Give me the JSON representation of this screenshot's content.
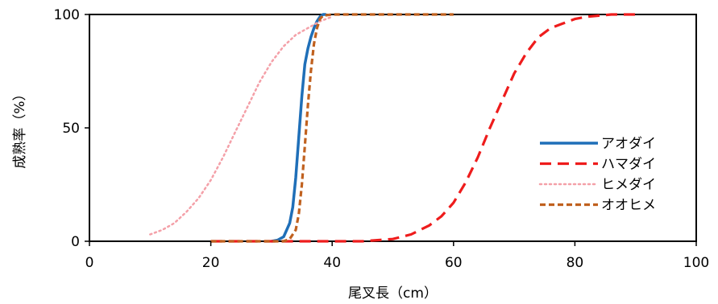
{
  "chart_data": {
    "type": "line",
    "title": "",
    "xlabel": "尾叉長（cm）",
    "ylabel": "成熟率（%）",
    "xlim": [
      0,
      100
    ],
    "ylim": [
      0,
      100
    ],
    "x_ticks": [
      0,
      20,
      40,
      60,
      80,
      100
    ],
    "y_ticks": [
      0,
      50,
      100
    ],
    "x_tick_labels": [
      "0",
      "20",
      "40",
      "60",
      "80",
      "100"
    ],
    "y_tick_labels": [
      "0",
      "50",
      "100"
    ],
    "grid": false,
    "legend_position": "right",
    "series": [
      {
        "name": "アオダイ",
        "color": "#1f6fb8",
        "dash": "solid",
        "x": [
          30,
          31,
          32,
          33,
          33.5,
          34,
          34.5,
          35,
          35.5,
          36,
          36.5,
          37,
          37.5,
          38,
          38.5,
          39
        ],
        "y": [
          0,
          0.5,
          2,
          8,
          15,
          28,
          46,
          64,
          78,
          85,
          90,
          94,
          97,
          99,
          100,
          100
        ]
      },
      {
        "name": "ハマダイ",
        "color": "#ee1c1c",
        "dash": "longdash",
        "x": [
          20,
          30,
          40,
          45,
          50,
          53,
          56,
          58,
          60,
          62,
          64,
          66,
          68,
          70,
          72,
          74,
          76,
          78,
          80,
          82,
          84,
          86,
          88,
          90
        ],
        "y": [
          0,
          0,
          0,
          0,
          1,
          3,
          7,
          11,
          17,
          26,
          37,
          50,
          62,
          74,
          83,
          90,
          94,
          96,
          98,
          99,
          99.5,
          100,
          100,
          100
        ]
      },
      {
        "name": "ヒメダイ",
        "color": "#f4a0a8",
        "dash": "dotted",
        "x": [
          10,
          12,
          14,
          16,
          18,
          20,
          22,
          24,
          26,
          28,
          30,
          32,
          34,
          36,
          38,
          40
        ],
        "y": [
          3,
          5,
          8,
          13,
          19,
          27,
          37,
          48,
          59,
          70,
          79,
          86,
          91,
          94,
          97,
          99
        ]
      },
      {
        "name": "オオヒメ",
        "color": "#c0611f",
        "dash": "dashed",
        "x": [
          20,
          30,
          32,
          33,
          34,
          34.5,
          35,
          35.5,
          36,
          36.5,
          37,
          37.5,
          38,
          38.5,
          40,
          50,
          60
        ],
        "y": [
          0,
          0,
          0,
          1,
          5,
          12,
          25,
          42,
          60,
          75,
          87,
          94,
          98,
          99.5,
          100,
          100,
          100
        ]
      }
    ]
  }
}
